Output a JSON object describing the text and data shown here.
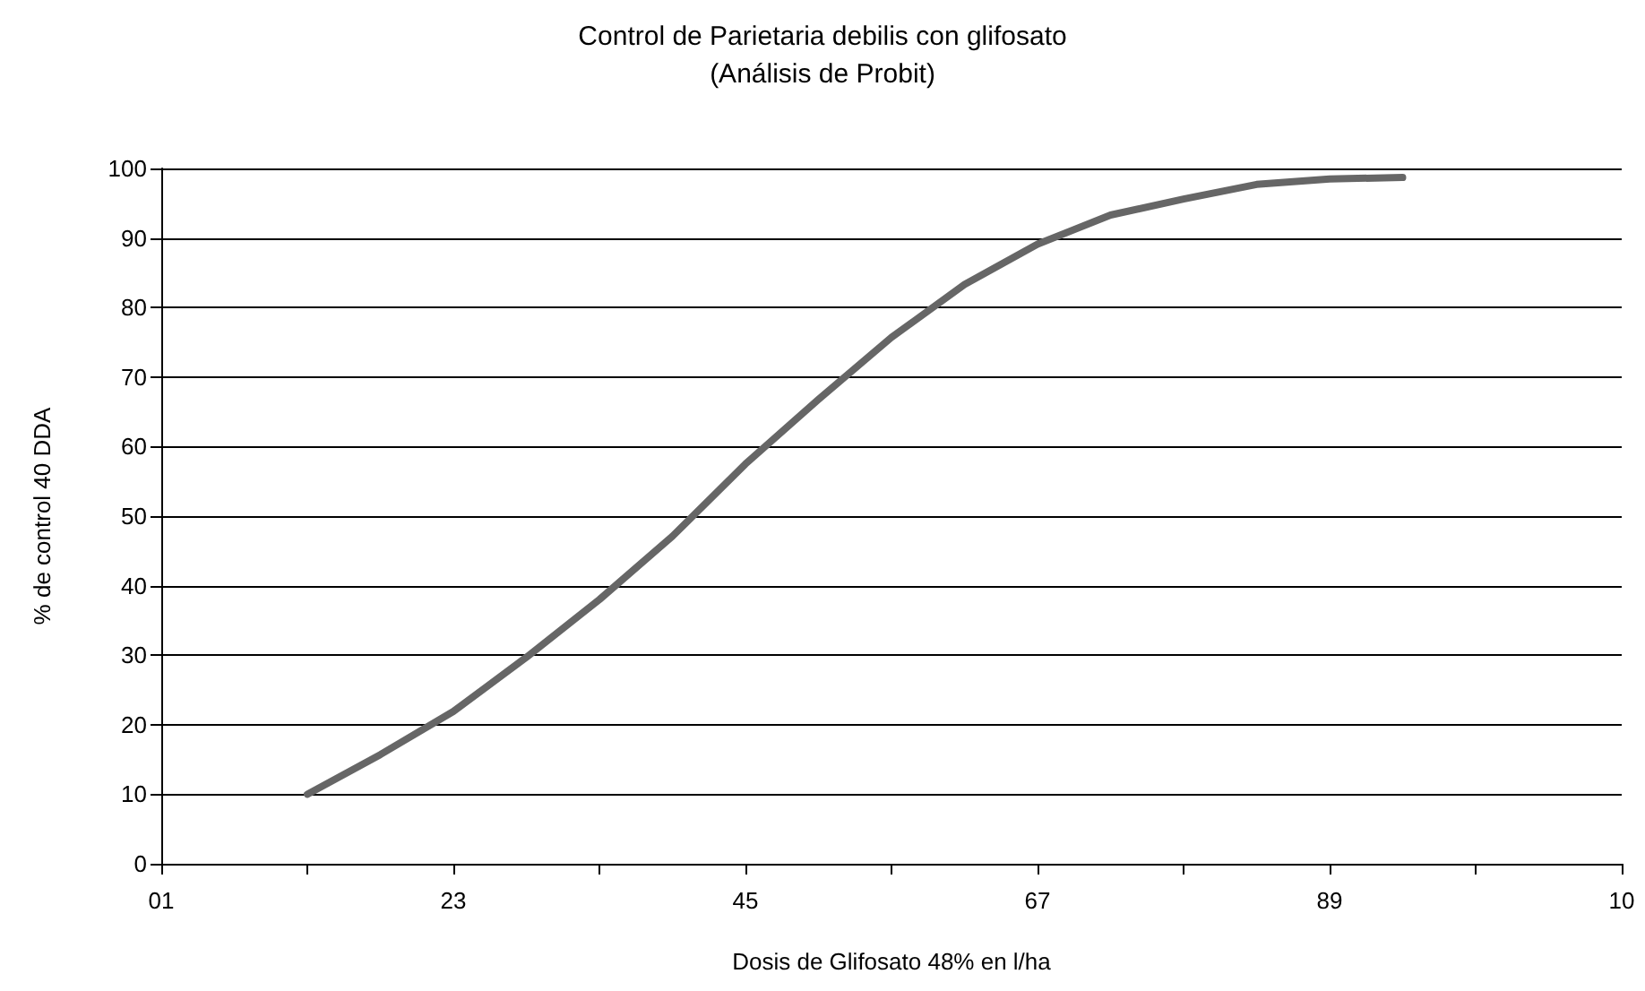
{
  "chart_data": {
    "type": "line",
    "title": "Control de Parietaria debilis con glifosato",
    "subtitle": "(Análisis de Probit)",
    "xlabel": "Dosis de Glifosato 48% en l/ha",
    "ylabel": "% de control 40 DDA",
    "categories": [
      "01",
      null,
      null,
      null,
      "23",
      null,
      null,
      null,
      "45",
      null,
      null,
      null,
      "67",
      null,
      null,
      null,
      "89",
      null,
      null,
      null,
      "10"
    ],
    "series": [
      {
        "color": "#666666",
        "values": [
          null,
          null,
          10,
          15.7,
          21.9,
          29.7,
          38,
          47.1,
          57.5,
          66.8,
          75.7,
          83.3,
          89.1,
          93.3,
          95.6,
          97.7,
          98.5,
          98.7,
          null,
          null,
          null
        ]
      }
    ],
    "ylim": [
      0,
      100
    ],
    "yticks": [
      0,
      10,
      20,
      30,
      40,
      50,
      60,
      70,
      80,
      90,
      100
    ],
    "grid": "y",
    "marker": "none",
    "line_style": "solid"
  }
}
